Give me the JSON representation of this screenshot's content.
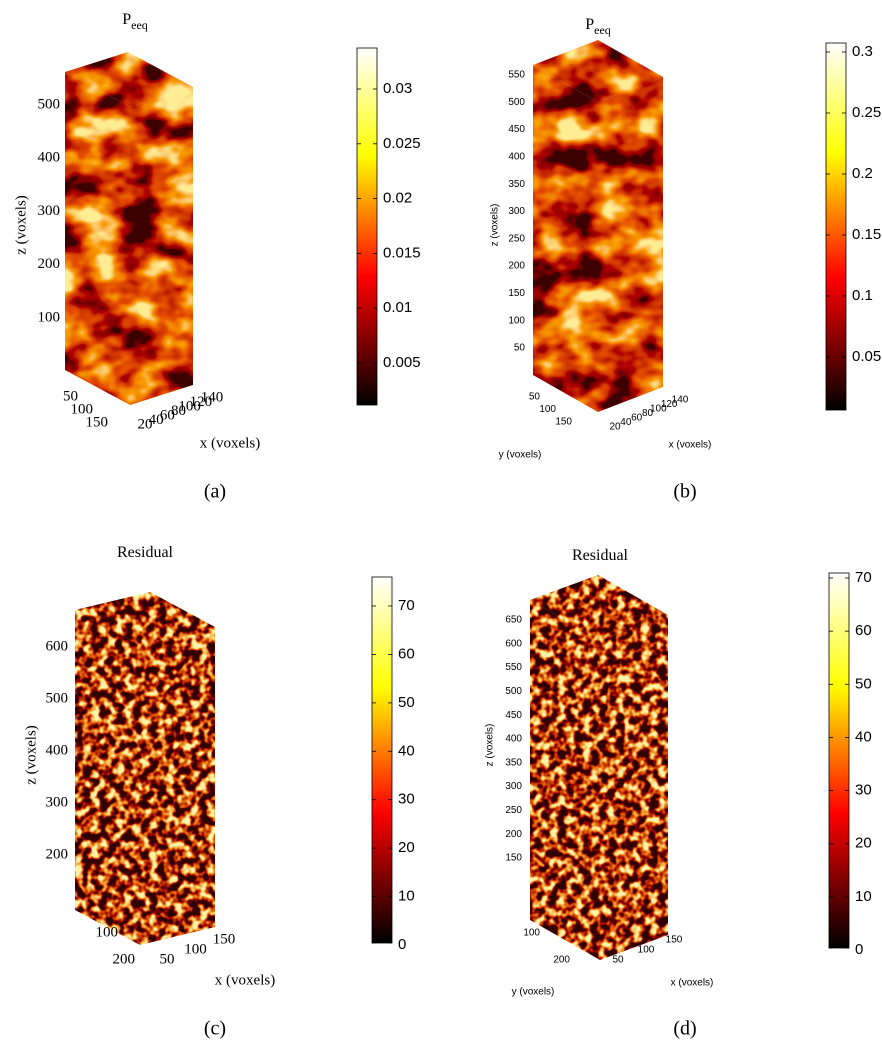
{
  "panels": [
    {
      "title": "P",
      "title_sub": "eeq",
      "z_label": "z (voxels)",
      "z_ticks": [
        100,
        200,
        300,
        400,
        500
      ],
      "y_ticks": [
        50,
        100,
        150
      ],
      "x_ticks": [
        20,
        40,
        60,
        80,
        100,
        120,
        140
      ],
      "x_label": "x (voxels)",
      "colorbar_ticks": [
        0.005,
        0.01,
        0.015,
        0.02,
        0.025,
        0.03
      ],
      "caption": "(a)"
    },
    {
      "title": "P",
      "title_sub": "eeq",
      "z_label": "z (voxels)",
      "z_ticks": [
        50,
        100,
        150,
        200,
        250,
        300,
        350,
        400,
        450,
        500,
        550
      ],
      "y_ticks": [
        50,
        100,
        150
      ],
      "y_label": "y (voxels)",
      "x_ticks": [
        20,
        40,
        60,
        80,
        100,
        120,
        140
      ],
      "x_label": "x (voxels)",
      "colorbar_ticks": [
        0.05,
        0.1,
        0.15,
        0.2,
        0.25,
        0.3
      ],
      "caption": "(b)"
    },
    {
      "title": "Residual",
      "z_label": "z (voxels)",
      "z_ticks": [
        200,
        300,
        400,
        500,
        600
      ],
      "y_ticks": [
        100,
        200
      ],
      "x_ticks": [
        50,
        100,
        150
      ],
      "x_label": "x (voxels)",
      "colorbar_ticks": [
        0,
        10,
        20,
        30,
        40,
        50,
        60,
        70
      ],
      "caption": "(c)"
    },
    {
      "title": "Residual",
      "z_label": "z (voxels)",
      "z_ticks": [
        150,
        200,
        250,
        300,
        350,
        400,
        450,
        500,
        550,
        600,
        650
      ],
      "y_ticks": [
        100,
        200
      ],
      "y_label": "y (voxels)",
      "x_ticks": [
        50,
        100,
        150
      ],
      "x_label": "x (voxels)",
      "colorbar_ticks": [
        0,
        10,
        20,
        30,
        40,
        50,
        60,
        70
      ],
      "caption": "(d)"
    }
  ]
}
